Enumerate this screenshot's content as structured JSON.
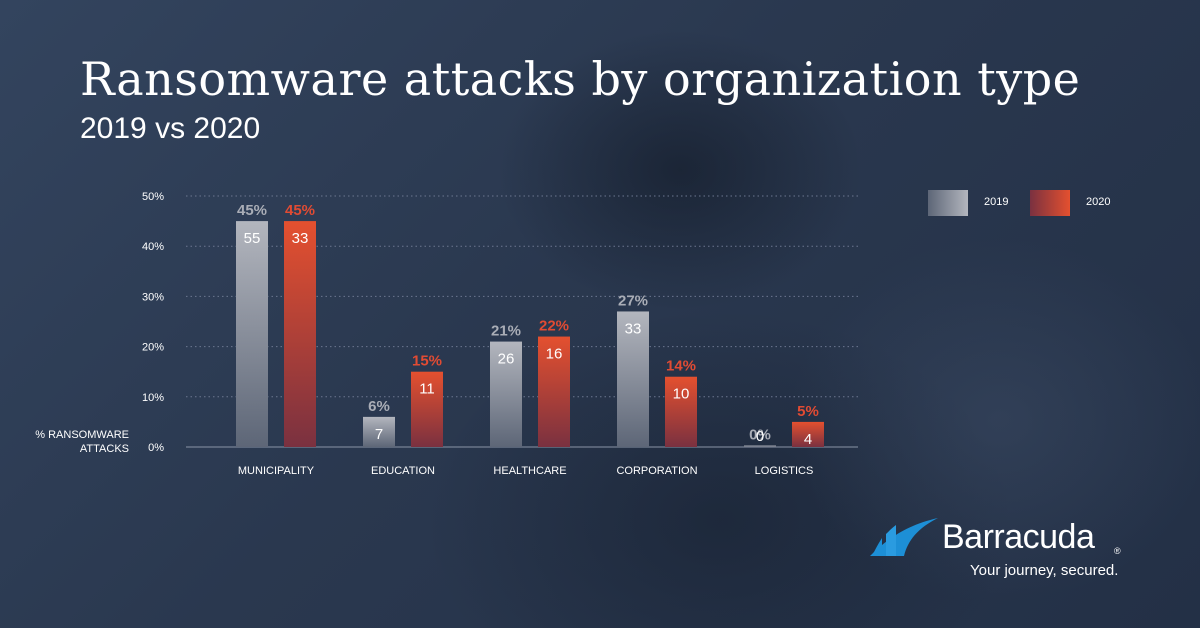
{
  "title": "Ransomware attacks by organization type",
  "subtitle": "2019 vs 2020",
  "colors": {
    "series_2019": "#a9adb6",
    "series_2020": "#e14b33",
    "brand_blue": "#1d8fd6"
  },
  "legend": [
    {
      "label": "2019",
      "color": "#a9adb6"
    },
    {
      "label": "2020",
      "color": "#e14b33"
    }
  ],
  "brand": {
    "name": "Barracuda",
    "registered": "®",
    "tagline": "Your journey, secured.",
    "icon": "barracuda-fin-icon"
  },
  "chart_data": {
    "type": "bar",
    "categories": [
      "MUNICIPALITY",
      "EDUCATION",
      "HEALTHCARE",
      "CORPORATION",
      "LOGISTICS"
    ],
    "series": [
      {
        "name": "2019",
        "values": [
          45,
          6,
          21,
          27,
          0
        ],
        "counts": [
          55,
          7,
          26,
          33,
          0
        ],
        "value_labels": [
          "45%",
          "6%",
          "21%",
          "27%",
          "0%"
        ]
      },
      {
        "name": "2020",
        "values": [
          45,
          15,
          22,
          14,
          5
        ],
        "counts": [
          33,
          11,
          16,
          10,
          4
        ],
        "value_labels": [
          "45%",
          "15%",
          "22%",
          "14%",
          "5%"
        ]
      }
    ],
    "ylabel_lines": [
      "% RANSOMWARE",
      "ATTACKS"
    ],
    "yticks": [
      0,
      10,
      20,
      30,
      40,
      50
    ],
    "ytick_labels": [
      "0%",
      "10%",
      "20%",
      "30%",
      "40%",
      "50%"
    ],
    "ylim": [
      0,
      50
    ],
    "grid": true,
    "legend_position": "top-right"
  }
}
